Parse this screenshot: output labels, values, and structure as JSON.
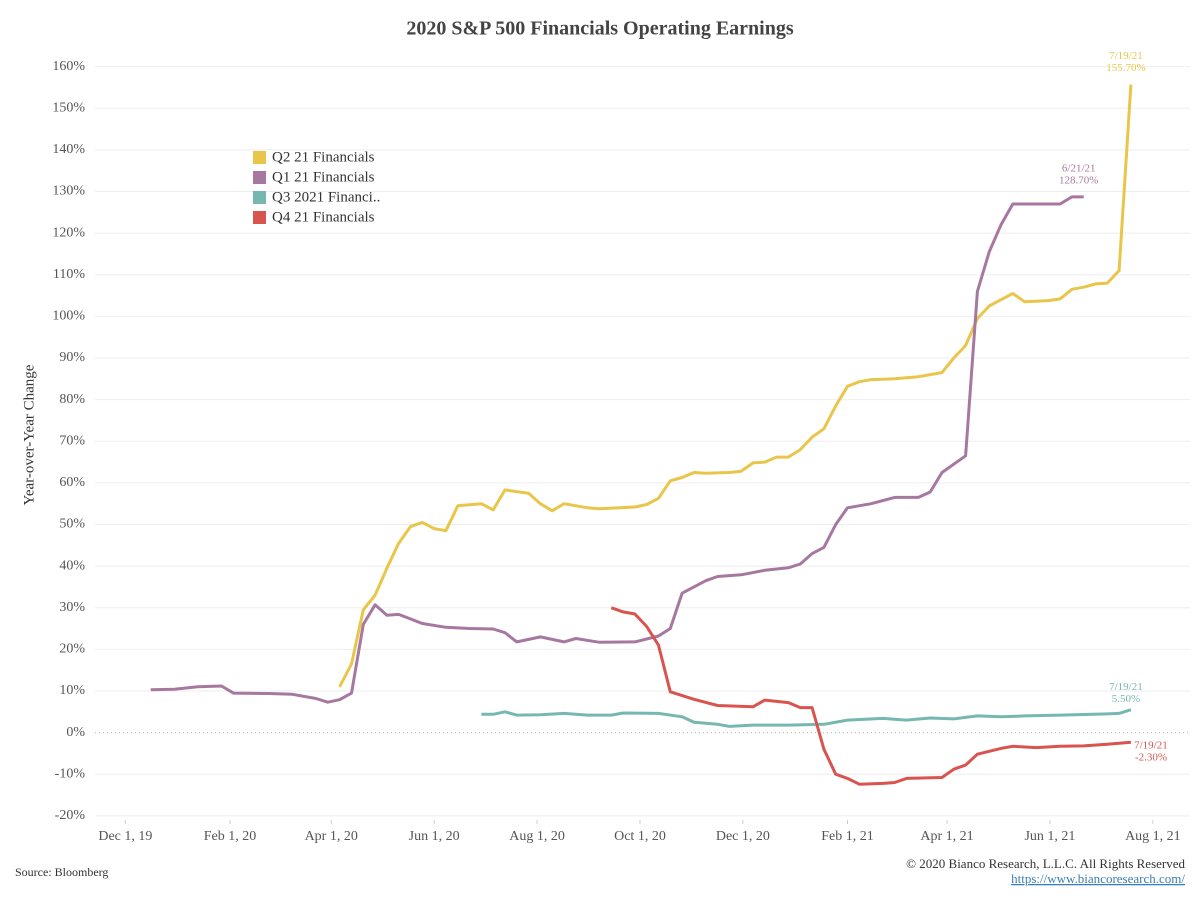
{
  "chart_data": {
    "type": "line",
    "title": "2020 S&P 500 Financials Operating Earnings",
    "y_label": "Year-over-Year Change",
    "source": "Source: Bloomberg",
    "copyright": "© 2020 Bianco Research, L.L.C. All Rights Reserved",
    "url": "https://www.biancoresearch.com/",
    "xlim": [
      "2019-11-13",
      "2021-08-23"
    ],
    "ylim": [
      -21,
      164
    ],
    "grid": true,
    "legend": "upper left",
    "xticks": [
      {
        "value": "2019-12-01",
        "label": "Dec 1, 19"
      },
      {
        "value": "2020-02-01",
        "label": "Feb 1, 20"
      },
      {
        "value": "2020-04-01",
        "label": "Apr 1, 20"
      },
      {
        "value": "2020-06-01",
        "label": "Jun 1, 20"
      },
      {
        "value": "2020-08-01",
        "label": "Aug 1, 20"
      },
      {
        "value": "2020-10-01",
        "label": "Oct 1, 20"
      },
      {
        "value": "2020-12-01",
        "label": "Dec 1, 20"
      },
      {
        "value": "2021-02-01",
        "label": "Feb 1, 21"
      },
      {
        "value": "2021-04-01",
        "label": "Apr 1, 21"
      },
      {
        "value": "2021-06-01",
        "label": "Jun 1, 21"
      },
      {
        "value": "2021-08-01",
        "label": "Aug 1, 21"
      }
    ],
    "yticks": [
      {
        "value": -20,
        "label": "-20%"
      },
      {
        "value": -10,
        "label": "-10%"
      },
      {
        "value": 0,
        "label": "0%"
      },
      {
        "value": 10,
        "label": "10%"
      },
      {
        "value": 20,
        "label": "20%"
      },
      {
        "value": 30,
        "label": "30%"
      },
      {
        "value": 40,
        "label": "40%"
      },
      {
        "value": 50,
        "label": "50%"
      },
      {
        "value": 60,
        "label": "60%"
      },
      {
        "value": 70,
        "label": "70%"
      },
      {
        "value": 80,
        "label": "80%"
      },
      {
        "value": 90,
        "label": "90%"
      },
      {
        "value": 100,
        "label": "100%"
      },
      {
        "value": 110,
        "label": "110%"
      },
      {
        "value": 120,
        "label": "120%"
      },
      {
        "value": 130,
        "label": "130%"
      },
      {
        "value": 140,
        "label": "140%"
      },
      {
        "value": 150,
        "label": "150%"
      },
      {
        "value": 160,
        "label": "160%"
      }
    ],
    "series": [
      {
        "name": "Q2 21 Financials",
        "color": "#e9c54a",
        "label": [
          "7/19/21",
          "155.70%"
        ],
        "x": [
          "2020-04-06",
          "2020-04-13",
          "2020-04-20",
          "2020-04-27",
          "2020-05-04",
          "2020-05-11",
          "2020-05-18",
          "2020-05-25",
          "2020-06-01",
          "2020-06-08",
          "2020-06-15",
          "2020-06-29",
          "2020-07-06",
          "2020-07-13",
          "2020-07-27",
          "2020-08-03",
          "2020-08-10",
          "2020-08-17",
          "2020-08-31",
          "2020-09-07",
          "2020-09-28",
          "2020-10-05",
          "2020-10-12",
          "2020-10-19",
          "2020-10-26",
          "2020-11-02",
          "2020-11-09",
          "2020-11-23",
          "2020-11-30",
          "2020-12-07",
          "2020-12-14",
          "2020-12-21",
          "2020-12-28",
          "2021-01-04",
          "2021-01-11",
          "2021-01-18",
          "2021-01-25",
          "2021-02-01",
          "2021-02-08",
          "2021-02-15",
          "2021-03-01",
          "2021-03-15",
          "2021-03-29",
          "2021-04-05",
          "2021-04-12",
          "2021-04-19",
          "2021-04-26",
          "2021-05-03",
          "2021-05-10",
          "2021-05-17",
          "2021-05-31",
          "2021-06-07",
          "2021-06-14",
          "2021-06-21",
          "2021-06-28",
          "2021-07-05",
          "2021-07-12",
          "2021-07-19"
        ],
        "values": [
          11.0,
          16.5,
          29.5,
          33.0,
          39.5,
          45.5,
          49.5,
          50.5,
          49.0,
          48.5,
          54.5,
          55.0,
          53.5,
          58.3,
          57.5,
          55.0,
          53.3,
          55.0,
          54.0,
          53.8,
          54.2,
          54.8,
          56.3,
          60.5,
          61.3,
          62.5,
          62.3,
          62.5,
          62.8,
          64.8,
          65.0,
          66.2,
          66.2,
          68.0,
          71.0,
          73.0,
          78.5,
          83.2,
          84.3,
          84.8,
          85.0,
          85.5,
          86.5,
          90.0,
          93.0,
          99.5,
          102.5,
          104.0,
          105.5,
          103.5,
          103.8,
          104.2,
          106.5,
          107.0,
          107.8,
          108.0,
          111.0,
          155.7
        ]
      },
      {
        "name": "Q1 21 Financials",
        "color": "#a7789f",
        "label": [
          "6/21/21",
          "128.70%"
        ],
        "x": [
          "2019-12-16",
          "2019-12-30",
          "2020-01-13",
          "2020-01-27",
          "2020-02-03",
          "2020-02-24",
          "2020-03-09",
          "2020-03-23",
          "2020-03-30",
          "2020-04-06",
          "2020-04-13",
          "2020-04-20",
          "2020-04-27",
          "2020-05-04",
          "2020-05-11",
          "2020-05-25",
          "2020-06-08",
          "2020-06-22",
          "2020-07-06",
          "2020-07-13",
          "2020-07-20",
          "2020-08-03",
          "2020-08-17",
          "2020-08-24",
          "2020-09-07",
          "2020-09-28",
          "2020-10-12",
          "2020-10-19",
          "2020-10-26",
          "2020-11-09",
          "2020-11-16",
          "2020-11-30",
          "2020-12-14",
          "2020-12-28",
          "2021-01-04",
          "2021-01-11",
          "2021-01-18",
          "2021-01-25",
          "2021-02-01",
          "2021-02-15",
          "2021-03-01",
          "2021-03-15",
          "2021-03-22",
          "2021-03-29",
          "2021-04-12",
          "2021-04-19",
          "2021-04-26",
          "2021-05-03",
          "2021-05-10",
          "2021-06-07",
          "2021-06-14",
          "2021-06-21"
        ],
        "values": [
          10.3,
          10.4,
          11.0,
          11.2,
          9.5,
          9.4,
          9.2,
          8.2,
          7.3,
          7.9,
          9.5,
          26.0,
          30.7,
          28.2,
          28.4,
          26.2,
          25.3,
          25.0,
          24.9,
          24.0,
          21.8,
          23.0,
          21.8,
          22.6,
          21.7,
          21.8,
          23.2,
          25.0,
          33.5,
          36.5,
          37.5,
          37.9,
          39.0,
          39.6,
          40.5,
          43.0,
          44.5,
          50.0,
          54.0,
          55.0,
          56.5,
          56.5,
          57.8,
          62.5,
          66.5,
          106.0,
          115.5,
          122.0,
          127.0,
          127.0,
          128.7,
          128.7
        ]
      },
      {
        "name": "Q3 2021 Financi..",
        "color": "#76b7b2",
        "label": [
          "7/19/21",
          "5.50%"
        ],
        "x": [
          "2020-06-29",
          "2020-07-06",
          "2020-07-13",
          "2020-07-20",
          "2020-08-03",
          "2020-08-17",
          "2020-08-31",
          "2020-09-14",
          "2020-09-21",
          "2020-10-12",
          "2020-10-26",
          "2020-11-02",
          "2020-11-16",
          "2020-11-23",
          "2020-12-07",
          "2020-12-28",
          "2021-01-18",
          "2021-02-01",
          "2021-02-22",
          "2021-03-08",
          "2021-03-22",
          "2021-04-05",
          "2021-04-19",
          "2021-05-03",
          "2021-05-17",
          "2021-06-07",
          "2021-07-05",
          "2021-07-12",
          "2021-07-19"
        ],
        "values": [
          4.4,
          4.4,
          5.0,
          4.2,
          4.3,
          4.6,
          4.2,
          4.2,
          4.7,
          4.6,
          3.8,
          2.5,
          2.0,
          1.5,
          1.8,
          1.8,
          2.0,
          3.0,
          3.4,
          3.0,
          3.5,
          3.3,
          4.0,
          3.8,
          4.0,
          4.2,
          4.5,
          4.6,
          5.5
        ]
      },
      {
        "name": "Q4 21 Financials",
        "color": "#d9534f",
        "label": [
          "7/19/21",
          "-2.30%"
        ],
        "x": [
          "2020-09-14",
          "2020-09-21",
          "2020-09-28",
          "2020-10-05",
          "2020-10-12",
          "2020-10-19",
          "2020-11-02",
          "2020-11-16",
          "2020-12-07",
          "2020-12-14",
          "2020-12-28",
          "2021-01-04",
          "2021-01-11",
          "2021-01-18",
          "2021-01-25",
          "2021-02-01",
          "2021-02-08",
          "2021-02-22",
          "2021-03-01",
          "2021-03-08",
          "2021-03-29",
          "2021-04-05",
          "2021-04-12",
          "2021-04-19",
          "2021-05-03",
          "2021-05-10",
          "2021-05-24",
          "2021-06-07",
          "2021-06-21",
          "2021-07-05",
          "2021-07-19"
        ],
        "values": [
          30.0,
          29.0,
          28.5,
          25.5,
          21.0,
          9.8,
          8.0,
          6.5,
          6.2,
          7.8,
          7.2,
          6.0,
          6.0,
          -4.0,
          -10.0,
          -11.0,
          -12.4,
          -12.2,
          -12.0,
          -11.0,
          -10.8,
          -8.8,
          -7.8,
          -5.2,
          -3.8,
          -3.3,
          -3.6,
          -3.3,
          -3.2,
          -2.8,
          -2.3
        ]
      }
    ]
  }
}
